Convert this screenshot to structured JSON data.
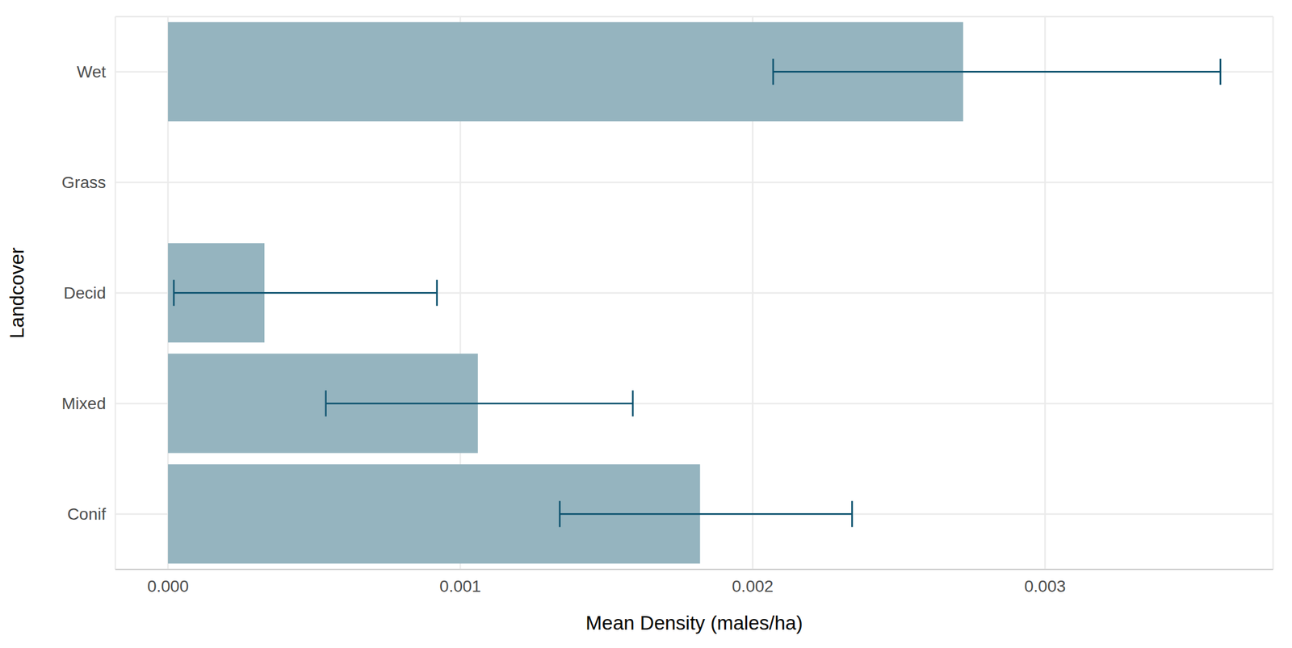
{
  "chart_data": {
    "type": "bar",
    "orientation": "horizontal",
    "x_label": "Mean Density (males/ha)",
    "y_label": "Landcover",
    "categories": [
      "Wet",
      "Grass",
      "Decid",
      "Mixed",
      "Conif"
    ],
    "values": [
      0.00272,
      0,
      0.00033,
      0.00106,
      0.00182
    ],
    "error_low": [
      0.00207,
      0,
      2e-05,
      0.00054,
      0.00134
    ],
    "error_high": [
      0.0036,
      0,
      0.00092,
      0.00159,
      0.00234
    ],
    "color": "#95b4bf",
    "xlim": [
      -0.00018,
      0.00378
    ],
    "xticks": [
      {
        "value": 0,
        "label": "0.000"
      },
      {
        "value": 0.001,
        "label": "0.001"
      },
      {
        "value": 0.002,
        "label": "0.002"
      },
      {
        "value": 0.003,
        "label": "0.003"
      }
    ],
    "grid": true
  }
}
